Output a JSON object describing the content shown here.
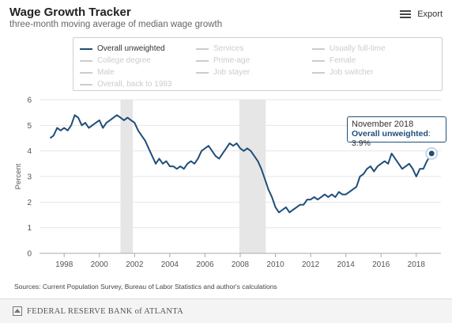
{
  "header": {
    "title": "Wage Growth Tracker",
    "subtitle": "three-month moving average of median wage growth",
    "export_label": "Export"
  },
  "legend": {
    "items": [
      {
        "label": "Overall unweighted",
        "active": true
      },
      {
        "label": "Services",
        "active": false
      },
      {
        "label": "Usually full-time",
        "active": false
      },
      {
        "label": "College degree",
        "active": false
      },
      {
        "label": "Prime-age",
        "active": false
      },
      {
        "label": "Female",
        "active": false
      },
      {
        "label": "Male",
        "active": false
      },
      {
        "label": "Job stayer",
        "active": false
      },
      {
        "label": "Job switcher",
        "active": false
      },
      {
        "label": "Overall, back to 1983",
        "active": false
      }
    ]
  },
  "tooltip": {
    "date": "November 2018",
    "series": "Overall unweighted",
    "value": "3.9%"
  },
  "sources": "Sources: Current Population Survey, Bureau of Labor Statistics and author's calculations",
  "footer": {
    "logo_text": "FEDERAL RESERVE BANK of ATLANTA"
  },
  "colors": {
    "series": "#1f4e79",
    "recession": "#e6e6e6",
    "grid": "#e6e6e6"
  },
  "chart_data": {
    "type": "line",
    "title": "Wage Growth Tracker",
    "subtitle": "three-month moving average of median wage growth",
    "xlabel": "",
    "ylabel": "Percent",
    "xlim": [
      1996.6,
      2019.4
    ],
    "ylim": [
      0,
      6
    ],
    "yticks": [
      0,
      1,
      2,
      3,
      4,
      5,
      6
    ],
    "xticks": [
      1998,
      2000,
      2002,
      2004,
      2006,
      2008,
      2010,
      2012,
      2014,
      2016,
      2018
    ],
    "grid": "horizontal",
    "legend_position": "top",
    "recessions": [
      [
        2001.2,
        2001.9
      ],
      [
        2007.95,
        2009.45
      ]
    ],
    "series": [
      {
        "name": "Overall unweighted",
        "points": [
          [
            1997.2,
            4.5
          ],
          [
            1997.4,
            4.6
          ],
          [
            1997.6,
            4.9
          ],
          [
            1997.8,
            4.8
          ],
          [
            1998.0,
            4.9
          ],
          [
            1998.2,
            4.8
          ],
          [
            1998.4,
            5.0
          ],
          [
            1998.6,
            5.4
          ],
          [
            1998.8,
            5.3
          ],
          [
            1999.0,
            5.0
          ],
          [
            1999.2,
            5.1
          ],
          [
            1999.4,
            4.9
          ],
          [
            1999.6,
            5.0
          ],
          [
            1999.8,
            5.1
          ],
          [
            2000.0,
            5.2
          ],
          [
            2000.2,
            4.9
          ],
          [
            2000.4,
            5.1
          ],
          [
            2000.6,
            5.2
          ],
          [
            2000.8,
            5.3
          ],
          [
            2001.0,
            5.4
          ],
          [
            2001.2,
            5.3
          ],
          [
            2001.4,
            5.2
          ],
          [
            2001.6,
            5.3
          ],
          [
            2001.8,
            5.2
          ],
          [
            2002.0,
            5.1
          ],
          [
            2002.2,
            4.8
          ],
          [
            2002.4,
            4.6
          ],
          [
            2002.6,
            4.4
          ],
          [
            2002.8,
            4.1
          ],
          [
            2003.0,
            3.8
          ],
          [
            2003.2,
            3.5
          ],
          [
            2003.4,
            3.7
          ],
          [
            2003.6,
            3.5
          ],
          [
            2003.8,
            3.6
          ],
          [
            2004.0,
            3.4
          ],
          [
            2004.2,
            3.4
          ],
          [
            2004.4,
            3.3
          ],
          [
            2004.6,
            3.4
          ],
          [
            2004.8,
            3.3
          ],
          [
            2005.0,
            3.5
          ],
          [
            2005.2,
            3.6
          ],
          [
            2005.4,
            3.5
          ],
          [
            2005.6,
            3.7
          ],
          [
            2005.8,
            4.0
          ],
          [
            2006.0,
            4.1
          ],
          [
            2006.2,
            4.2
          ],
          [
            2006.4,
            4.0
          ],
          [
            2006.6,
            3.8
          ],
          [
            2006.8,
            3.7
          ],
          [
            2007.0,
            3.9
          ],
          [
            2007.2,
            4.1
          ],
          [
            2007.4,
            4.3
          ],
          [
            2007.6,
            4.2
          ],
          [
            2007.8,
            4.3
          ],
          [
            2008.0,
            4.1
          ],
          [
            2008.2,
            4.0
          ],
          [
            2008.4,
            4.1
          ],
          [
            2008.6,
            4.0
          ],
          [
            2008.8,
            3.8
          ],
          [
            2009.0,
            3.6
          ],
          [
            2009.2,
            3.3
          ],
          [
            2009.4,
            2.9
          ],
          [
            2009.6,
            2.5
          ],
          [
            2009.8,
            2.2
          ],
          [
            2010.0,
            1.8
          ],
          [
            2010.2,
            1.6
          ],
          [
            2010.4,
            1.7
          ],
          [
            2010.6,
            1.8
          ],
          [
            2010.8,
            1.6
          ],
          [
            2011.0,
            1.7
          ],
          [
            2011.2,
            1.8
          ],
          [
            2011.4,
            1.9
          ],
          [
            2011.6,
            1.9
          ],
          [
            2011.8,
            2.1
          ],
          [
            2012.0,
            2.1
          ],
          [
            2012.2,
            2.2
          ],
          [
            2012.4,
            2.1
          ],
          [
            2012.6,
            2.2
          ],
          [
            2012.8,
            2.3
          ],
          [
            2013.0,
            2.2
          ],
          [
            2013.2,
            2.3
          ],
          [
            2013.4,
            2.2
          ],
          [
            2013.6,
            2.4
          ],
          [
            2013.8,
            2.3
          ],
          [
            2014.0,
            2.3
          ],
          [
            2014.2,
            2.4
          ],
          [
            2014.4,
            2.5
          ],
          [
            2014.6,
            2.6
          ],
          [
            2014.8,
            3.0
          ],
          [
            2015.0,
            3.1
          ],
          [
            2015.2,
            3.3
          ],
          [
            2015.4,
            3.4
          ],
          [
            2015.6,
            3.2
          ],
          [
            2015.8,
            3.4
          ],
          [
            2016.0,
            3.5
          ],
          [
            2016.2,
            3.6
          ],
          [
            2016.4,
            3.5
          ],
          [
            2016.6,
            3.9
          ],
          [
            2016.8,
            3.7
          ],
          [
            2017.0,
            3.5
          ],
          [
            2017.2,
            3.3
          ],
          [
            2017.4,
            3.4
          ],
          [
            2017.6,
            3.5
          ],
          [
            2017.8,
            3.3
          ],
          [
            2018.0,
            3.0
          ],
          [
            2018.2,
            3.3
          ],
          [
            2018.4,
            3.3
          ],
          [
            2018.6,
            3.6
          ],
          [
            2018.87,
            3.9
          ]
        ]
      }
    ],
    "highlight": {
      "x": 2018.87,
      "y": 3.9
    }
  }
}
